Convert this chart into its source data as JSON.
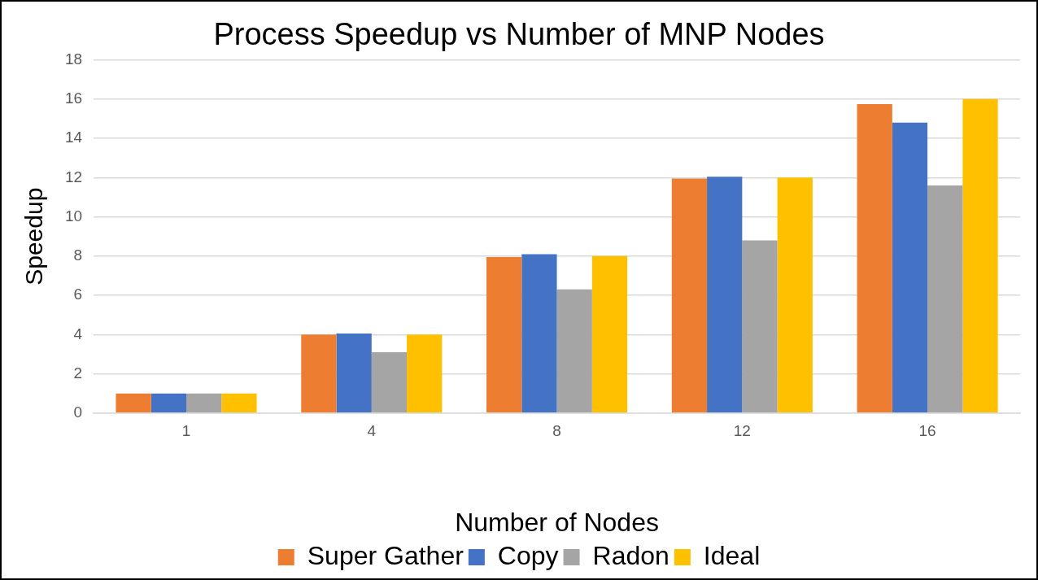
{
  "chart_data": {
    "type": "bar",
    "title": "Process Speedup vs Number of MNP Nodes",
    "xlabel": "Number of Nodes",
    "ylabel": "Speedup",
    "categories": [
      "1",
      "4",
      "8",
      "12",
      "16"
    ],
    "series": [
      {
        "name": "Super Gather",
        "color": "#ed7d31",
        "values": [
          1,
          4,
          7.95,
          11.95,
          15.75
        ]
      },
      {
        "name": "Copy",
        "color": "#4472c4",
        "values": [
          1,
          4.05,
          8.1,
          12.05,
          14.8
        ]
      },
      {
        "name": "Radon",
        "color": "#a5a5a5",
        "values": [
          1,
          3.1,
          6.3,
          8.8,
          11.6
        ]
      },
      {
        "name": "Ideal",
        "color": "#ffc000",
        "values": [
          1,
          4,
          8,
          12,
          16
        ]
      }
    ],
    "ylim": [
      0,
      18
    ],
    "yticks": [
      0,
      2,
      4,
      6,
      8,
      10,
      12,
      14,
      16,
      18
    ],
    "grid": "y",
    "legend": "bottom"
  }
}
